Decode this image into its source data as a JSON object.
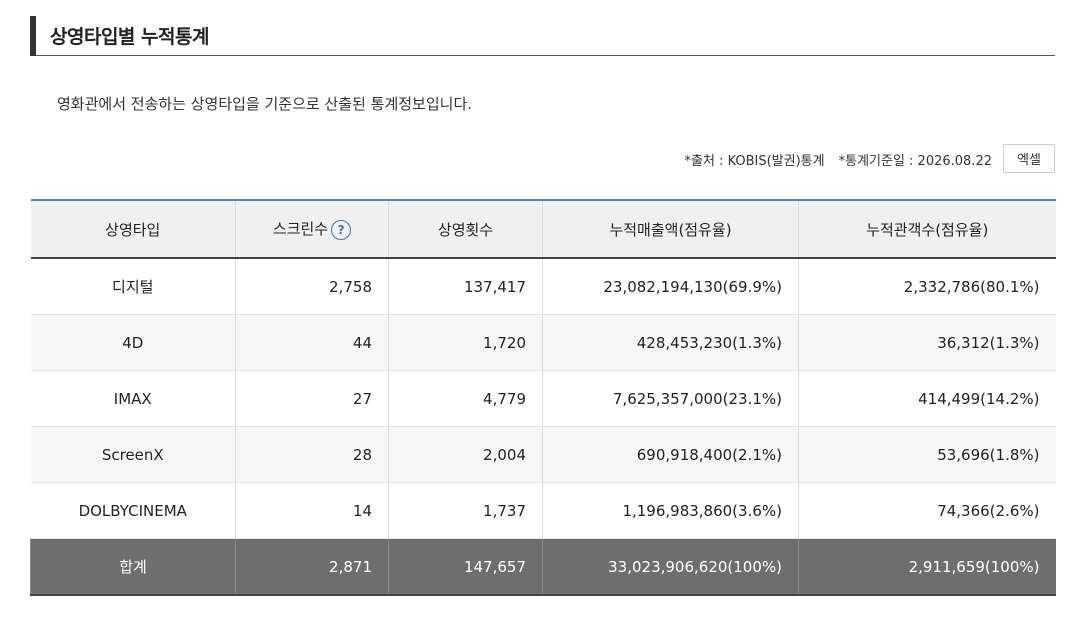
{
  "section": {
    "title": "상영타입별 누적통계",
    "description": "영화관에서 전송하는 상영타입을 기준으로 산출된 통계정보입니다."
  },
  "meta": {
    "source": "*출처 : KOBIS(발권)통계",
    "date": "*통계기준일 : 2026.08.22",
    "excel_label": "엑셀"
  },
  "table": {
    "headers": [
      "상영타입",
      "스크린수",
      "상영횟수",
      "누적매출액(점유율)",
      "누적관객수(점유율)"
    ],
    "help_icon": "?",
    "rows": [
      {
        "type": "디지털",
        "screens": "2,758",
        "shows": "137,417",
        "sales": "23,082,194,130(69.9%)",
        "audience": "2,332,786(80.1%)"
      },
      {
        "type": "4D",
        "screens": "44",
        "shows": "1,720",
        "sales": "428,453,230(1.3%)",
        "audience": "36,312(1.3%)"
      },
      {
        "type": "IMAX",
        "screens": "27",
        "shows": "4,779",
        "sales": "7,625,357,000(23.1%)",
        "audience": "414,499(14.2%)"
      },
      {
        "type": "ScreenX",
        "screens": "28",
        "shows": "2,004",
        "sales": "690,918,400(2.1%)",
        "audience": "53,696(1.8%)"
      },
      {
        "type": "DOLBYCINEMA",
        "screens": "14",
        "shows": "1,737",
        "sales": "1,196,983,860(3.6%)",
        "audience": "74,366(2.6%)"
      }
    ],
    "total": {
      "type": "합계",
      "screens": "2,871",
      "shows": "147,657",
      "sales": "33,023,906,620(100%)",
      "audience": "2,911,659(100%)"
    }
  }
}
